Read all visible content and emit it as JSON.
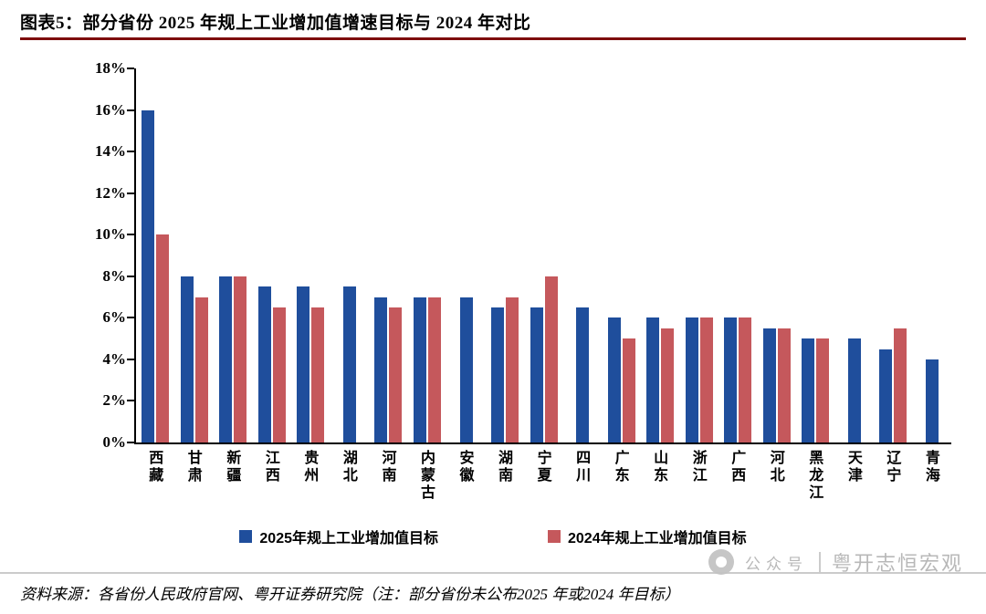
{
  "header": {
    "title": "图表5：部分省份 2025 年规上工业增加值增速目标与 2024 年对比"
  },
  "chart_data": {
    "type": "bar",
    "title": "部分省份 2025 年规上工业增加值增速目标与 2024 年对比",
    "categories": [
      "西藏",
      "甘肃",
      "新疆",
      "江西",
      "贵州",
      "湖北",
      "河南",
      "内蒙古",
      "安徽",
      "湖南",
      "宁夏",
      "四川",
      "广东",
      "山东",
      "浙江",
      "广西",
      "河北",
      "黑龙江",
      "天津",
      "辽宁",
      "青海"
    ],
    "series": [
      {
        "name": "2025年规上工业增加值目标",
        "color": "#1F4E9C",
        "values": [
          16,
          8,
          8,
          7.5,
          7.5,
          7.5,
          7,
          7,
          7,
          6.5,
          6.5,
          6.5,
          6,
          6,
          6,
          6,
          5.5,
          5,
          5,
          4.5,
          4
        ]
      },
      {
        "name": "2024年规上工业增加值目标",
        "color": "#C5585C",
        "values": [
          10,
          7,
          8,
          6.5,
          6.5,
          null,
          6.5,
          7,
          null,
          7,
          8,
          null,
          5,
          5.5,
          6,
          6,
          5.5,
          5,
          null,
          5.5,
          null
        ]
      }
    ],
    "ylim": [
      0,
      18
    ],
    "yticks": {
      "values": [
        0,
        2,
        4,
        6,
        8,
        10,
        12,
        14,
        16,
        18
      ],
      "labels": [
        "0%",
        "2%",
        "4%",
        "6%",
        "8%",
        "10%",
        "12%",
        "14%",
        "16%",
        "18%"
      ]
    },
    "grid": false,
    "legend_position": "bottom",
    "unit": "%"
  },
  "watermark": {
    "label": "公众号",
    "name": "粤开志恒宏观"
  },
  "footer": {
    "source_note": "资料来源：各省份人民政府官网、粤开证券研究院（注：部分省份未公布2025 年或2024 年目标）"
  }
}
